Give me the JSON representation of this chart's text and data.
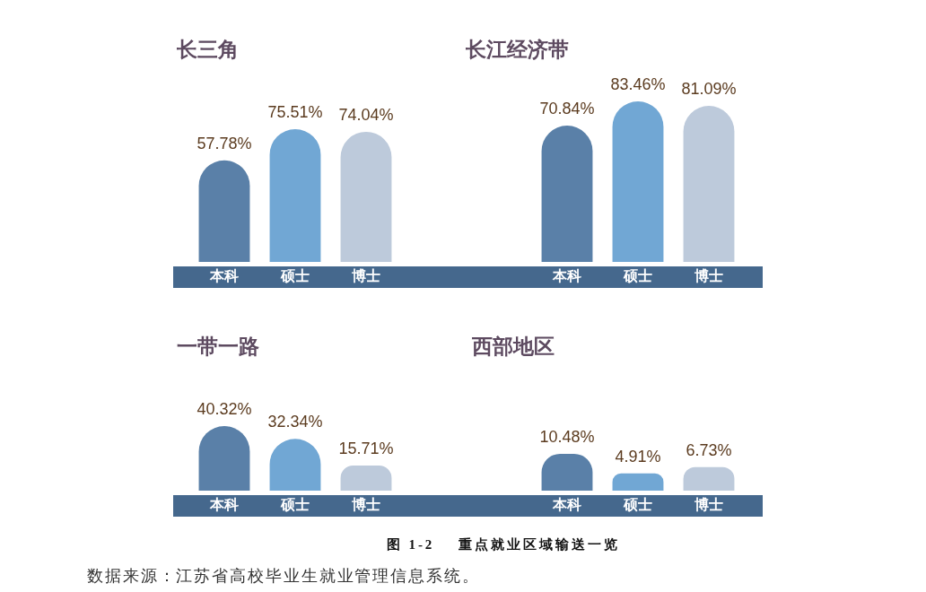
{
  "chart_data": [
    {
      "type": "bar",
      "title": "长三角",
      "categories": [
        "本科",
        "硕士",
        "博士"
      ],
      "values": [
        57.78,
        75.51,
        74.04
      ],
      "colors": [
        "#5a80a8",
        "#71a7d4",
        "#bdcadb"
      ],
      "value_labels": [
        "57.78%",
        "75.51%",
        "74.04%"
      ],
      "tick_labels": "x"
    },
    {
      "type": "bar",
      "title": "长江经济带",
      "categories": [
        "本科",
        "硕士",
        "博士"
      ],
      "values": [
        70.84,
        83.46,
        81.09
      ],
      "colors": [
        "#5a80a8",
        "#71a7d4",
        "#bdcadb"
      ],
      "value_labels": [
        "70.84%",
        "83.46%",
        "81.09%"
      ],
      "tick_labels": "x"
    },
    {
      "type": "bar",
      "title": "一带一路",
      "categories": [
        "本科",
        "硕士",
        "博士"
      ],
      "values": [
        40.32,
        32.34,
        15.71
      ],
      "colors": [
        "#5a80a8",
        "#71a7d4",
        "#bdcadb"
      ],
      "value_labels": [
        "40.32%",
        "32.34%",
        "15.71%"
      ],
      "tick_labels": "x"
    },
    {
      "type": "bar",
      "title": "西部地区",
      "categories": [
        "本科",
        "硕士",
        "博士"
      ],
      "values": [
        10.48,
        4.91,
        6.73
      ],
      "colors": [
        "#5a80a8",
        "#71a7d4",
        "#bdcadb"
      ],
      "value_labels": [
        "10.48%",
        "4.91%",
        "6.73%"
      ],
      "tick_labels": "x",
      "annotations": [
        "图 1-2    重点就业区域输送一览",
        "数据来源：江苏省高校毕业生就业管理信息系统。"
      ]
    }
  ]
}
